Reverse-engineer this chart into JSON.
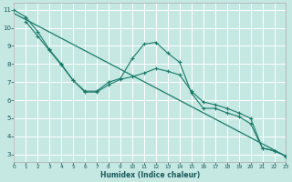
{
  "xlabel": "Humidex (Indice chaleur)",
  "bg_color": "#c5e8e3",
  "line_color": "#1a7a6a",
  "grid_color": "#d8eeea",
  "xlim": [
    0,
    23
  ],
  "ylim": [
    2.6,
    11.4
  ],
  "yticks": [
    3,
    4,
    5,
    6,
    7,
    8,
    9,
    10,
    11
  ],
  "xticks": [
    0,
    1,
    2,
    3,
    4,
    5,
    6,
    7,
    8,
    9,
    10,
    11,
    12,
    13,
    14,
    15,
    16,
    17,
    18,
    19,
    20,
    21,
    22,
    23
  ],
  "curve_upper_x": [
    0,
    1,
    2,
    3,
    4,
    5,
    6,
    7,
    8,
    9,
    10,
    11,
    12,
    13,
    14,
    15,
    16,
    17,
    18,
    19,
    20,
    21,
    22,
    23
  ],
  "curve_upper_y": [
    11.0,
    10.6,
    9.8,
    8.8,
    8.0,
    7.1,
    6.5,
    6.5,
    7.0,
    7.2,
    8.3,
    9.1,
    9.2,
    8.6,
    8.1,
    6.4,
    5.55,
    5.55,
    5.3,
    5.1,
    4.7,
    3.35,
    3.2,
    2.9
  ],
  "curve_lower_x": [
    1,
    2,
    3,
    4,
    5,
    6,
    7,
    8,
    9,
    10,
    11,
    12,
    13,
    14,
    15,
    16,
    17,
    18,
    19,
    20,
    21,
    22,
    23
  ],
  "curve_lower_y": [
    10.35,
    9.55,
    8.75,
    7.95,
    7.1,
    6.45,
    6.45,
    6.85,
    7.15,
    7.3,
    7.5,
    7.75,
    7.6,
    7.4,
    6.5,
    5.9,
    5.75,
    5.55,
    5.3,
    5.0,
    3.35,
    3.2,
    2.9
  ],
  "trend_x": [
    0,
    23
  ],
  "trend_y": [
    10.8,
    2.9
  ]
}
